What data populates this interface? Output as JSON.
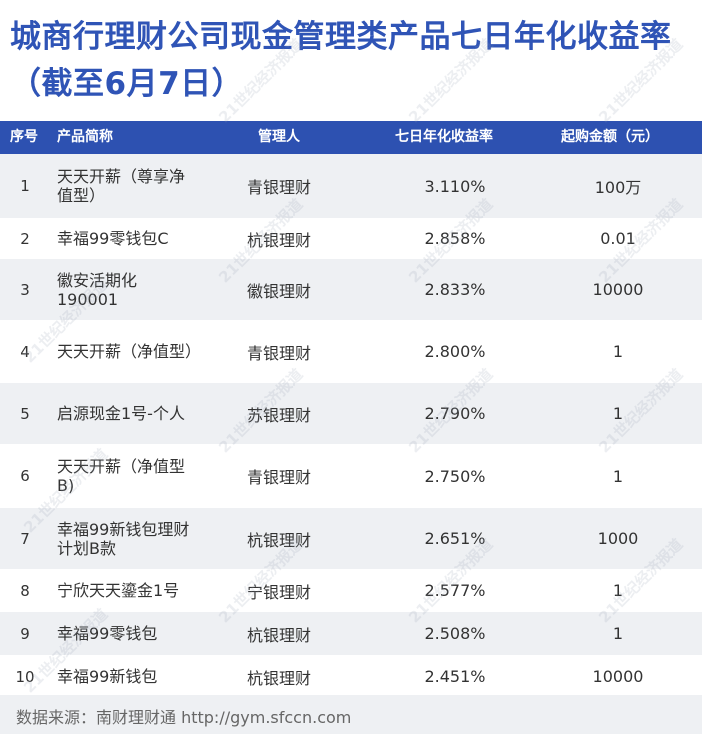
{
  "title": "城商行理财公司现金管理类产品七日年化收益率（截至6月7日）",
  "watermark": "21世纪经济报道",
  "header": {
    "index": "序号",
    "name": "产品简称",
    "manager": "管理人",
    "rate": "七日年化收益率",
    "min_amount": "起购金额（元）"
  },
  "rows": [
    {
      "index": "1",
      "name": "天天开薪（尊享净值型）",
      "manager": "青银理财",
      "rate": "3.110%",
      "min_amount": "100万"
    },
    {
      "index": "2",
      "name": "幸福99零钱包C",
      "manager": "杭银理财",
      "rate": "2.858%",
      "min_amount": "0.01"
    },
    {
      "index": "3",
      "name": "徽安活期化190001",
      "manager": "徽银理财",
      "rate": "2.833%",
      "min_amount": "10000"
    },
    {
      "index": "4",
      "name": "天天开薪（净值型）",
      "manager": "青银理财",
      "rate": "2.800%",
      "min_amount": "1"
    },
    {
      "index": "5",
      "name": "启源现金1号-个人",
      "manager": "苏银理财",
      "rate": "2.790%",
      "min_amount": "1"
    },
    {
      "index": "6",
      "name": "天天开薪（净值型B)",
      "manager": "青银理财",
      "rate": "2.750%",
      "min_amount": "1"
    },
    {
      "index": "7",
      "name": "幸福99新钱包理财计划B款",
      "manager": "杭银理财",
      "rate": "2.651%",
      "min_amount": "1000"
    },
    {
      "index": "8",
      "name": "宁欣天天鎏金1号",
      "manager": "宁银理财",
      "rate": "2.577%",
      "min_amount": "1"
    },
    {
      "index": "9",
      "name": "幸福99零钱包",
      "manager": "杭银理财",
      "rate": "2.508%",
      "min_amount": "1"
    },
    {
      "index": "10",
      "name": "幸福99新钱包",
      "manager": "杭银理财",
      "rate": "2.451%",
      "min_amount": "10000"
    }
  ],
  "footer": "数据来源：南财理财通 http://gym.sfccn.com",
  "colors": {
    "title": "#2f54b6",
    "header_bg": "#2d51b1",
    "stripe": "#eef0f3"
  }
}
